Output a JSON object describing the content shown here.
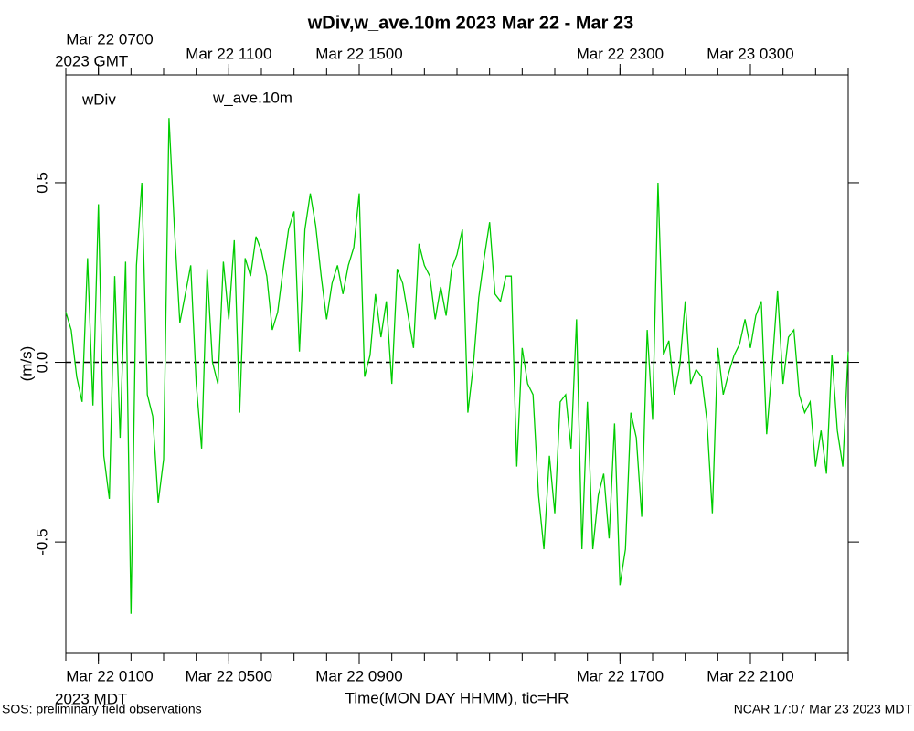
{
  "chart_data": {
    "type": "line",
    "title": "wDiv,w_ave.10m 2023 Mar 22 - Mar 23",
    "ylabel": "(m/s)",
    "xlabel": "Time(MON DAY HHMM), tic=HR",
    "x_zone_label": "2023 MDT",
    "x2_zone_label": "2023 GMT",
    "variable_label": {
      "text": "wDiv",
      "color": "#ff0000"
    },
    "footer_left": "SOS: preliminary field observations",
    "footer_right": "NCAR 17:07 Mar 23 2023 MDT",
    "reference_line": 0,
    "xlim": [
      0,
      1440
    ],
    "ylim": [
      -0.81,
      0.8
    ],
    "yticks": [
      -0.5,
      {
        "value": 0,
        "label": "0.0"
      },
      0.5
    ],
    "xticks": [
      {
        "value": 60,
        "label": "Mar 22 0100"
      },
      {
        "value": 300,
        "label": "Mar 22 0500"
      },
      {
        "value": 540,
        "label": "Mar 22 0900"
      },
      {
        "value": 1020,
        "label": "Mar 22 1700"
      },
      {
        "value": 1260,
        "label": "Mar 22 2100"
      }
    ],
    "x2ticks": [
      {
        "value": 60,
        "label": "Mar 22 0700"
      },
      {
        "value": 300,
        "label": "Mar 22 1100"
      },
      {
        "value": 540,
        "label": "Mar 22 1500"
      },
      {
        "value": 1020,
        "label": "Mar 22 2300"
      },
      {
        "value": 1260,
        "label": "Mar 23 0300"
      }
    ],
    "xminor_ticks": [
      0,
      60,
      120,
      180,
      240,
      300,
      360,
      420,
      480,
      540,
      600,
      660,
      720,
      780,
      840,
      900,
      960,
      1020,
      1080,
      1140,
      1200,
      1260,
      1320,
      1380,
      1440
    ],
    "x": [
      0,
      10,
      20,
      30,
      40,
      50,
      60,
      70,
      80,
      90,
      100,
      110,
      120,
      130,
      140,
      150,
      160,
      170,
      180,
      190,
      200,
      210,
      220,
      230,
      240,
      250,
      260,
      270,
      280,
      290,
      300,
      310,
      320,
      330,
      340,
      350,
      360,
      370,
      380,
      390,
      400,
      410,
      420,
      430,
      440,
      450,
      460,
      470,
      480,
      490,
      500,
      510,
      520,
      530,
      540,
      550,
      560,
      570,
      580,
      590,
      600,
      610,
      620,
      630,
      640,
      650,
      660,
      670,
      680,
      690,
      700,
      710,
      720,
      730,
      740,
      750,
      760,
      770,
      780,
      790,
      800,
      810,
      820,
      830,
      840,
      850,
      860,
      870,
      880,
      890,
      900,
      910,
      920,
      930,
      940,
      950,
      960,
      970,
      980,
      990,
      1000,
      1010,
      1020,
      1030,
      1040,
      1050,
      1060,
      1070,
      1080,
      1090,
      1100,
      1110,
      1120,
      1130,
      1140,
      1150,
      1160,
      1170,
      1180,
      1190,
      1200,
      1210,
      1220,
      1230,
      1240,
      1250,
      1260,
      1270,
      1280,
      1290,
      1300,
      1310,
      1320,
      1330,
      1340,
      1350,
      1360,
      1370,
      1380,
      1390,
      1400,
      1410,
      1420,
      1430,
      1440
    ],
    "series": [
      {
        "name": "w_ave.10m",
        "color": "#00cc00",
        "values": [
          0.14,
          0.09,
          -0.04,
          -0.11,
          0.29,
          -0.12,
          0.44,
          -0.26,
          -0.38,
          0.24,
          -0.21,
          0.28,
          -0.7,
          0.27,
          0.5,
          -0.09,
          -0.15,
          -0.39,
          -0.27,
          0.68,
          0.37,
          0.11,
          0.19,
          0.27,
          -0.06,
          -0.24,
          0.26,
          0.0,
          -0.06,
          0.28,
          0.12,
          0.34,
          -0.14,
          0.29,
          0.24,
          0.35,
          0.31,
          0.24,
          0.09,
          0.14,
          0.26,
          0.37,
          0.42,
          0.03,
          0.37,
          0.47,
          0.38,
          0.24,
          0.12,
          0.22,
          0.27,
          0.19,
          0.27,
          0.32,
          0.47,
          -0.04,
          0.02,
          0.19,
          0.07,
          0.17,
          -0.06,
          0.26,
          0.22,
          0.13,
          0.04,
          0.33,
          0.27,
          0.24,
          0.12,
          0.21,
          0.13,
          0.26,
          0.3,
          0.37,
          -0.14,
          -0.01,
          0.18,
          0.29,
          0.39,
          0.19,
          0.17,
          0.24,
          0.24,
          -0.29,
          0.04,
          -0.06,
          -0.09,
          -0.37,
          -0.52,
          -0.26,
          -0.42,
          -0.11,
          -0.09,
          -0.24,
          0.12,
          -0.52,
          -0.11,
          -0.52,
          -0.37,
          -0.31,
          -0.49,
          -0.17,
          -0.62,
          -0.52,
          -0.14,
          -0.21,
          -0.43,
          0.09,
          -0.16,
          0.5,
          0.02,
          0.06,
          -0.09,
          -0.01,
          0.17,
          -0.06,
          -0.02,
          -0.04,
          -0.16,
          -0.42,
          0.04,
          -0.09,
          -0.03,
          0.02,
          0.05,
          0.12,
          0.04,
          0.13,
          0.17,
          -0.2,
          -0.01,
          0.2,
          -0.06,
          0.07,
          0.09,
          -0.09,
          -0.14,
          -0.11,
          -0.29,
          -0.19,
          -0.31,
          0.02,
          -0.19,
          -0.29,
          0.03
        ]
      }
    ]
  }
}
